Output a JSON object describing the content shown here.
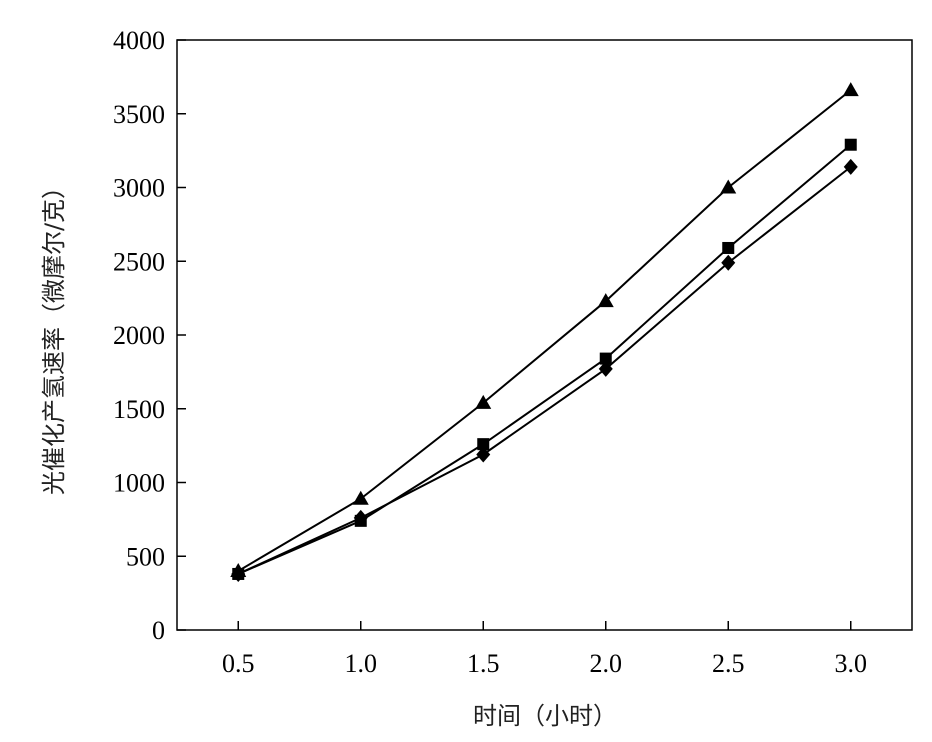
{
  "chart_data": {
    "type": "line",
    "xlabel": "时间（小时）",
    "ylabel": "光催化产氢速率（微摩尔/克）",
    "xlim": [
      0.25,
      3.25
    ],
    "ylim": [
      0,
      4000
    ],
    "xticks": [
      0.5,
      1.0,
      1.5,
      2.0,
      2.5,
      3.0
    ],
    "xtick_labels": [
      "0.5",
      "1.0",
      "1.5",
      "2.0",
      "2.5",
      "3.0"
    ],
    "yticks": [
      0,
      500,
      1000,
      1500,
      2000,
      2500,
      3000,
      3500,
      4000
    ],
    "ytick_labels": [
      "0",
      "500",
      "1000",
      "1500",
      "2000",
      "2500",
      "3000",
      "3500",
      "4000"
    ],
    "grid": false,
    "x": [
      0.5,
      1.0,
      1.5,
      2.0,
      2.5,
      3.0
    ],
    "series": [
      {
        "marker": "triangle",
        "values": [
          400,
          890,
          1540,
          2230,
          3000,
          3660
        ]
      },
      {
        "marker": "square",
        "values": [
          380,
          740,
          1260,
          1840,
          2590,
          3290
        ]
      },
      {
        "marker": "diamond",
        "values": [
          380,
          760,
          1190,
          1770,
          2490,
          3140
        ]
      }
    ]
  }
}
